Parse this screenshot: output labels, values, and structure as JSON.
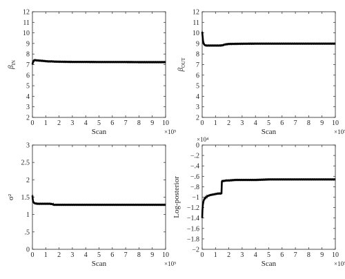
{
  "chart_data": [
    {
      "type": "line",
      "xlabel": "Scan",
      "ylabel": "β_IN",
      "ylabel_main": "β",
      "ylabel_sub": "IN",
      "x_multiplier": "×10⁵",
      "xlim": [
        0,
        10
      ],
      "ylim": [
        2,
        12
      ],
      "xticks": [
        0,
        1,
        2,
        3,
        4,
        5,
        6,
        7,
        8,
        9,
        10
      ],
      "yticks": [
        2,
        3,
        4,
        5,
        6,
        7,
        8,
        9,
        10,
        11,
        12
      ],
      "series": [
        {
          "x": [
            0,
            0.03,
            0.08,
            0.15,
            0.3,
            0.5,
            0.8,
            1.0,
            1.2,
            1.5,
            1.7,
            2.0,
            3,
            4,
            5,
            6,
            7,
            8,
            9,
            10
          ],
          "y": [
            7.0,
            7.2,
            7.35,
            7.42,
            7.4,
            7.38,
            7.35,
            7.32,
            7.3,
            7.3,
            7.28,
            7.27,
            7.25,
            7.25,
            7.24,
            7.24,
            7.24,
            7.23,
            7.23,
            7.23
          ]
        }
      ]
    },
    {
      "type": "line",
      "xlabel": "Scan",
      "ylabel": "β_OUT",
      "ylabel_main": "β",
      "ylabel_sub": "OUT",
      "x_multiplier": "×10⁵",
      "xlim": [
        0,
        10
      ],
      "ylim": [
        2,
        12
      ],
      "xticks": [
        0,
        1,
        2,
        3,
        4,
        5,
        6,
        7,
        8,
        9,
        10
      ],
      "yticks": [
        2,
        3,
        4,
        5,
        6,
        7,
        8,
        9,
        10,
        11,
        12
      ],
      "series": [
        {
          "x": [
            0,
            0.03,
            0.06,
            0.1,
            0.15,
            0.2,
            0.3,
            0.5,
            0.8,
            1.0,
            1.3,
            1.5,
            1.6,
            1.7,
            2.0,
            3,
            4,
            5,
            6,
            7,
            8,
            9,
            10
          ],
          "y": [
            10.1,
            9.7,
            9.3,
            9.0,
            8.9,
            8.85,
            8.8,
            8.8,
            8.8,
            8.8,
            8.8,
            8.82,
            8.85,
            8.9,
            8.95,
            8.97,
            8.98,
            8.98,
            8.98,
            8.98,
            8.98,
            8.98,
            8.98
          ]
        }
      ]
    },
    {
      "type": "line",
      "xlabel": "Scan",
      "ylabel": "σ²",
      "ylabel_main": "σ²",
      "ylabel_sub": "",
      "x_multiplier": "×10⁵",
      "xlim": [
        0,
        10
      ],
      "ylim": [
        0,
        3
      ],
      "xticks": [
        0,
        1,
        2,
        3,
        4,
        5,
        6,
        7,
        8,
        9,
        10
      ],
      "yticks": [
        0,
        0.5,
        1,
        1.5,
        2,
        2.5,
        3
      ],
      "series": [
        {
          "x": [
            0,
            0.02,
            0.05,
            0.1,
            0.2,
            0.4,
            0.7,
            1.0,
            1.3,
            1.5,
            1.6,
            2.0,
            3,
            4,
            5,
            6,
            7,
            8,
            9,
            10
          ],
          "y": [
            1.55,
            1.45,
            1.38,
            1.34,
            1.32,
            1.31,
            1.31,
            1.31,
            1.31,
            1.3,
            1.28,
            1.28,
            1.28,
            1.28,
            1.28,
            1.28,
            1.28,
            1.28,
            1.28,
            1.28
          ]
        }
      ]
    },
    {
      "type": "line",
      "xlabel": "Scan",
      "ylabel": "Log-posterior",
      "ylabel_main": "Log-posterior",
      "ylabel_sub": "",
      "x_multiplier": "×10⁵",
      "y_multiplier": "×10⁴",
      "xlim": [
        0,
        10
      ],
      "ylim": [
        -2,
        0
      ],
      "xticks": [
        0,
        1,
        2,
        3,
        4,
        5,
        6,
        7,
        8,
        9,
        10
      ],
      "yticks": [
        -2,
        -1.8,
        -1.6,
        -1.4,
        -1.2,
        -1,
        -0.8,
        -0.6,
        -0.4,
        -0.2,
        0
      ],
      "series": [
        {
          "x": [
            0,
            0.02,
            0.05,
            0.1,
            0.15,
            0.2,
            0.3,
            0.4,
            0.6,
            0.8,
            1.0,
            1.2,
            1.45,
            1.48,
            1.5,
            1.6,
            1.8,
            2.0,
            2.5,
            3,
            4,
            5,
            6,
            7,
            8,
            9,
            10
          ],
          "y": [
            -1.4,
            -1.25,
            -1.15,
            -1.08,
            -1.04,
            -1.02,
            -1.0,
            -0.98,
            -0.96,
            -0.95,
            -0.94,
            -0.93,
            -0.93,
            -0.7,
            -0.69,
            -0.69,
            -0.68,
            -0.68,
            -0.67,
            -0.67,
            -0.67,
            -0.66,
            -0.66,
            -0.66,
            -0.66,
            -0.66,
            -0.66
          ]
        }
      ]
    }
  ]
}
